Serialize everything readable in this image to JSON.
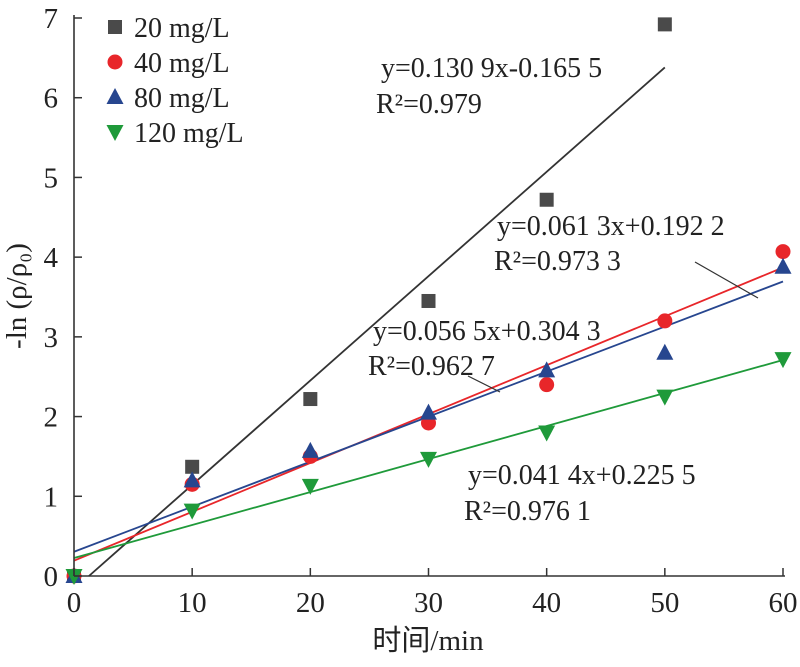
{
  "chart_data": {
    "type": "scatter",
    "xlabel": "时间/min",
    "ylabel": "-ln (ρ/ρ₀)",
    "xlim": [
      0,
      60
    ],
    "ylim": [
      0,
      7
    ],
    "xticks": [
      "0",
      "10",
      "20",
      "30",
      "40",
      "50",
      "60"
    ],
    "yticks": [
      "0",
      "1",
      "2",
      "3",
      "4",
      "5",
      "6",
      "7"
    ],
    "legend_position": "top-left",
    "grid": false,
    "series": [
      {
        "name": "20 mg/L",
        "marker": "square",
        "color": "#4a4a4a",
        "line_color": "#333333",
        "x": [
          0,
          10,
          20,
          30,
          40,
          50
        ],
        "y": [
          0,
          1.37,
          2.22,
          3.45,
          4.72,
          6.92
        ],
        "fit": {
          "slope": 0.1309,
          "intercept": -0.1655
        },
        "equation": "y=0.130 9x-0.165 5",
        "r2": "R²=0.979"
      },
      {
        "name": "40 mg/L",
        "marker": "circle",
        "color": "#e8262a",
        "line_color": "#e8262a",
        "x": [
          0,
          10,
          20,
          30,
          40,
          50,
          60
        ],
        "y": [
          0,
          1.15,
          1.5,
          1.92,
          2.4,
          3.2,
          4.07
        ],
        "fit": {
          "slope": 0.0613,
          "intercept": 0.1922
        },
        "equation": "y=0.061 3x+0.192 2",
        "r2": "R²=0.973 3"
      },
      {
        "name": "80 mg/L",
        "marker": "triangle-up",
        "color": "#27468f",
        "line_color": "#27468f",
        "x": [
          0,
          10,
          20,
          30,
          40,
          50,
          60
        ],
        "y": [
          0,
          1.2,
          1.57,
          2.05,
          2.58,
          2.8,
          3.88
        ],
        "fit": {
          "slope": 0.0565,
          "intercept": 0.3043
        },
        "equation": "y=0.056 5x+0.304 3",
        "r2": "R²=0.962 7"
      },
      {
        "name": "120 mg/L",
        "marker": "triangle-down",
        "color": "#1f9a3a",
        "line_color": "#1f9a3a",
        "x": [
          0,
          10,
          20,
          30,
          40,
          50,
          60
        ],
        "y": [
          0,
          0.82,
          1.13,
          1.47,
          1.8,
          2.25,
          2.72
        ],
        "fit": {
          "slope": 0.0414,
          "intercept": 0.2255
        },
        "equation": "y=0.041 4x+0.225 5",
        "r2": "R²=0.976 1"
      }
    ]
  }
}
